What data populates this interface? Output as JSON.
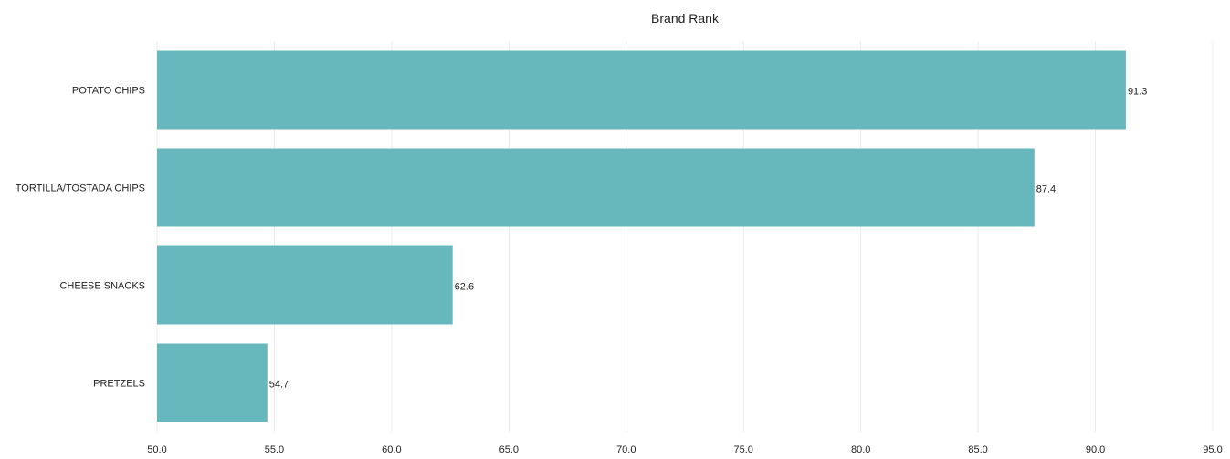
{
  "chart_data": {
    "type": "bar",
    "orientation": "horizontal",
    "title": "Brand Rank",
    "xlabel": "",
    "ylabel": "",
    "categories": [
      "POTATO CHIPS",
      "TORTILLA/TOSTADA CHIPS",
      "CHEESE SNACKS",
      "PRETZELS"
    ],
    "values": [
      91.3,
      87.4,
      62.6,
      54.7
    ],
    "value_labels": [
      "91.3",
      "87.4",
      "62.6",
      "54.7"
    ],
    "xlim": [
      50.0,
      95.0
    ],
    "x_ticks": [
      "50.0",
      "55.0",
      "60.0",
      "65.0",
      "70.0",
      "75.0",
      "80.0",
      "85.0",
      "90.0",
      "95.0"
    ],
    "grid": "vertical",
    "legend": "none",
    "bar_color": "#66b8bd"
  }
}
